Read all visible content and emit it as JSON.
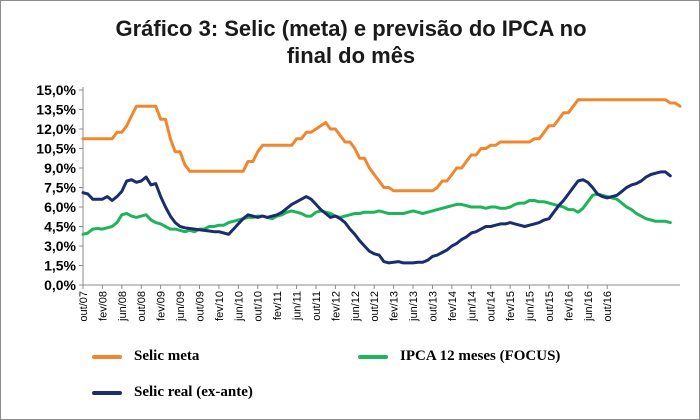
{
  "chart_data": {
    "type": "line",
    "title_line1": "Gráfico 3: Selic (meta) e previsão do IPCA no",
    "title_line2": "final do mês",
    "ylim": [
      0,
      15
    ],
    "yticks": [
      "0,0%",
      "1,5%",
      "3,0%",
      "4,5%",
      "6,0%",
      "7,5%",
      "9,0%",
      "10,5%",
      "12,0%",
      "13,5%",
      "15,0%"
    ],
    "xticks": [
      "out/07",
      "fev/08",
      "jun/08",
      "out/08",
      "fev/09",
      "jun/09",
      "out/09",
      "fev/10",
      "jun/10",
      "out/10",
      "fev/11",
      "jun/11",
      "out/11",
      "fev/12",
      "jun/12",
      "out/12",
      "fev/13",
      "jun/13",
      "out/13",
      "fev/14",
      "jun/14",
      "out/14",
      "fev/15",
      "jun/15",
      "out/15",
      "fev/16",
      "jun/16",
      "out/16"
    ],
    "x_start": "out/07",
    "x_step": "1 month",
    "series": [
      {
        "name": "Selic meta",
        "color": "#f0872f",
        "values": [
          11.25,
          11.25,
          11.25,
          11.25,
          11.25,
          11.25,
          11.25,
          11.75,
          11.75,
          12.25,
          13.0,
          13.75,
          13.75,
          13.75,
          13.75,
          13.75,
          12.75,
          12.75,
          11.25,
          10.25,
          10.25,
          9.25,
          8.75,
          8.75,
          8.75,
          8.75,
          8.75,
          8.75,
          8.75,
          8.75,
          8.75,
          8.75,
          8.75,
          8.75,
          9.5,
          9.5,
          10.25,
          10.75,
          10.75,
          10.75,
          10.75,
          10.75,
          10.75,
          10.75,
          11.25,
          11.25,
          11.75,
          11.75,
          12.0,
          12.25,
          12.5,
          12.0,
          12.0,
          11.5,
          11.0,
          11.0,
          10.5,
          9.75,
          9.75,
          9.0,
          8.5,
          8.0,
          7.5,
          7.5,
          7.25,
          7.25,
          7.25,
          7.25,
          7.25,
          7.25,
          7.25,
          7.25,
          7.25,
          7.5,
          8.0,
          8.0,
          8.5,
          9.0,
          9.0,
          9.5,
          10.0,
          10.0,
          10.5,
          10.5,
          10.75,
          10.75,
          11.0,
          11.0,
          11.0,
          11.0,
          11.0,
          11.0,
          11.0,
          11.25,
          11.25,
          11.75,
          12.25,
          12.25,
          12.75,
          13.25,
          13.25,
          13.75,
          14.25,
          14.25,
          14.25,
          14.25,
          14.25,
          14.25,
          14.25,
          14.25,
          14.25,
          14.25,
          14.25,
          14.25,
          14.25,
          14.25,
          14.25,
          14.25,
          14.25,
          14.25,
          14.25,
          14.0,
          14.0,
          13.75
        ]
      },
      {
        "name": "IPCA 12 meses (FOCUS)",
        "color": "#1eb45a",
        "values": [
          3.9,
          4.0,
          4.3,
          4.35,
          4.3,
          4.4,
          4.5,
          4.8,
          5.4,
          5.5,
          5.3,
          5.2,
          5.3,
          5.4,
          5.0,
          4.8,
          4.7,
          4.5,
          4.3,
          4.3,
          4.2,
          4.1,
          4.2,
          4.1,
          4.3,
          4.3,
          4.5,
          4.5,
          4.6,
          4.6,
          4.8,
          4.9,
          5.0,
          5.1,
          5.2,
          5.2,
          5.3,
          5.3,
          5.2,
          5.1,
          5.3,
          5.4,
          5.6,
          5.7,
          5.6,
          5.5,
          5.3,
          5.3,
          5.6,
          5.7,
          5.6,
          5.5,
          5.3,
          5.2,
          5.3,
          5.4,
          5.5,
          5.5,
          5.6,
          5.6,
          5.6,
          5.7,
          5.6,
          5.5,
          5.5,
          5.5,
          5.5,
          5.6,
          5.7,
          5.6,
          5.5,
          5.6,
          5.7,
          5.8,
          5.9,
          6.0,
          6.1,
          6.2,
          6.2,
          6.1,
          6.0,
          6.0,
          6.0,
          5.9,
          6.0,
          6.0,
          5.9,
          5.9,
          6.0,
          6.2,
          6.3,
          6.3,
          6.5,
          6.5,
          6.4,
          6.4,
          6.3,
          6.2,
          6.1,
          6.0,
          5.8,
          5.8,
          5.6,
          5.9,
          6.4,
          6.9,
          7.0,
          6.9,
          6.8,
          6.7,
          6.6,
          6.3,
          6.0,
          5.8,
          5.5,
          5.3,
          5.1,
          5.0,
          4.9,
          4.9,
          4.9,
          4.8
        ]
      },
      {
        "name": "Selic real (ex-ante)",
        "color": "#1a2d6e",
        "values": [
          7.1,
          7.0,
          6.6,
          6.6,
          6.6,
          6.8,
          6.5,
          6.8,
          7.2,
          8.0,
          8.1,
          7.9,
          8.0,
          8.3,
          7.7,
          7.8,
          6.8,
          6.0,
          5.3,
          4.8,
          4.5,
          4.4,
          4.35,
          4.3,
          4.25,
          4.2,
          4.15,
          4.1,
          4.1,
          4.0,
          3.9,
          4.3,
          4.7,
          5.1,
          5.4,
          5.3,
          5.2,
          5.3,
          5.2,
          5.3,
          5.4,
          5.6,
          5.9,
          6.2,
          6.4,
          6.6,
          6.8,
          6.6,
          6.2,
          5.8,
          5.5,
          5.2,
          5.3,
          5.1,
          4.8,
          4.3,
          3.9,
          3.4,
          3.0,
          2.6,
          2.4,
          2.3,
          1.8,
          1.7,
          1.75,
          1.8,
          1.7,
          1.7,
          1.7,
          1.75,
          1.75,
          1.9,
          2.2,
          2.3,
          2.5,
          2.7,
          3.0,
          3.2,
          3.5,
          3.7,
          4.0,
          4.1,
          4.3,
          4.5,
          4.5,
          4.6,
          4.7,
          4.7,
          4.8,
          4.7,
          4.6,
          4.5,
          4.6,
          4.7,
          4.8,
          5.0,
          5.1,
          5.6,
          6.1,
          6.5,
          7.0,
          7.5,
          8.0,
          8.1,
          7.9,
          7.5,
          7.0,
          6.8,
          6.7,
          6.8,
          6.9,
          7.2,
          7.5,
          7.7,
          7.8,
          8.0,
          8.3,
          8.5,
          8.6,
          8.7,
          8.7,
          8.4
        ]
      }
    ]
  }
}
